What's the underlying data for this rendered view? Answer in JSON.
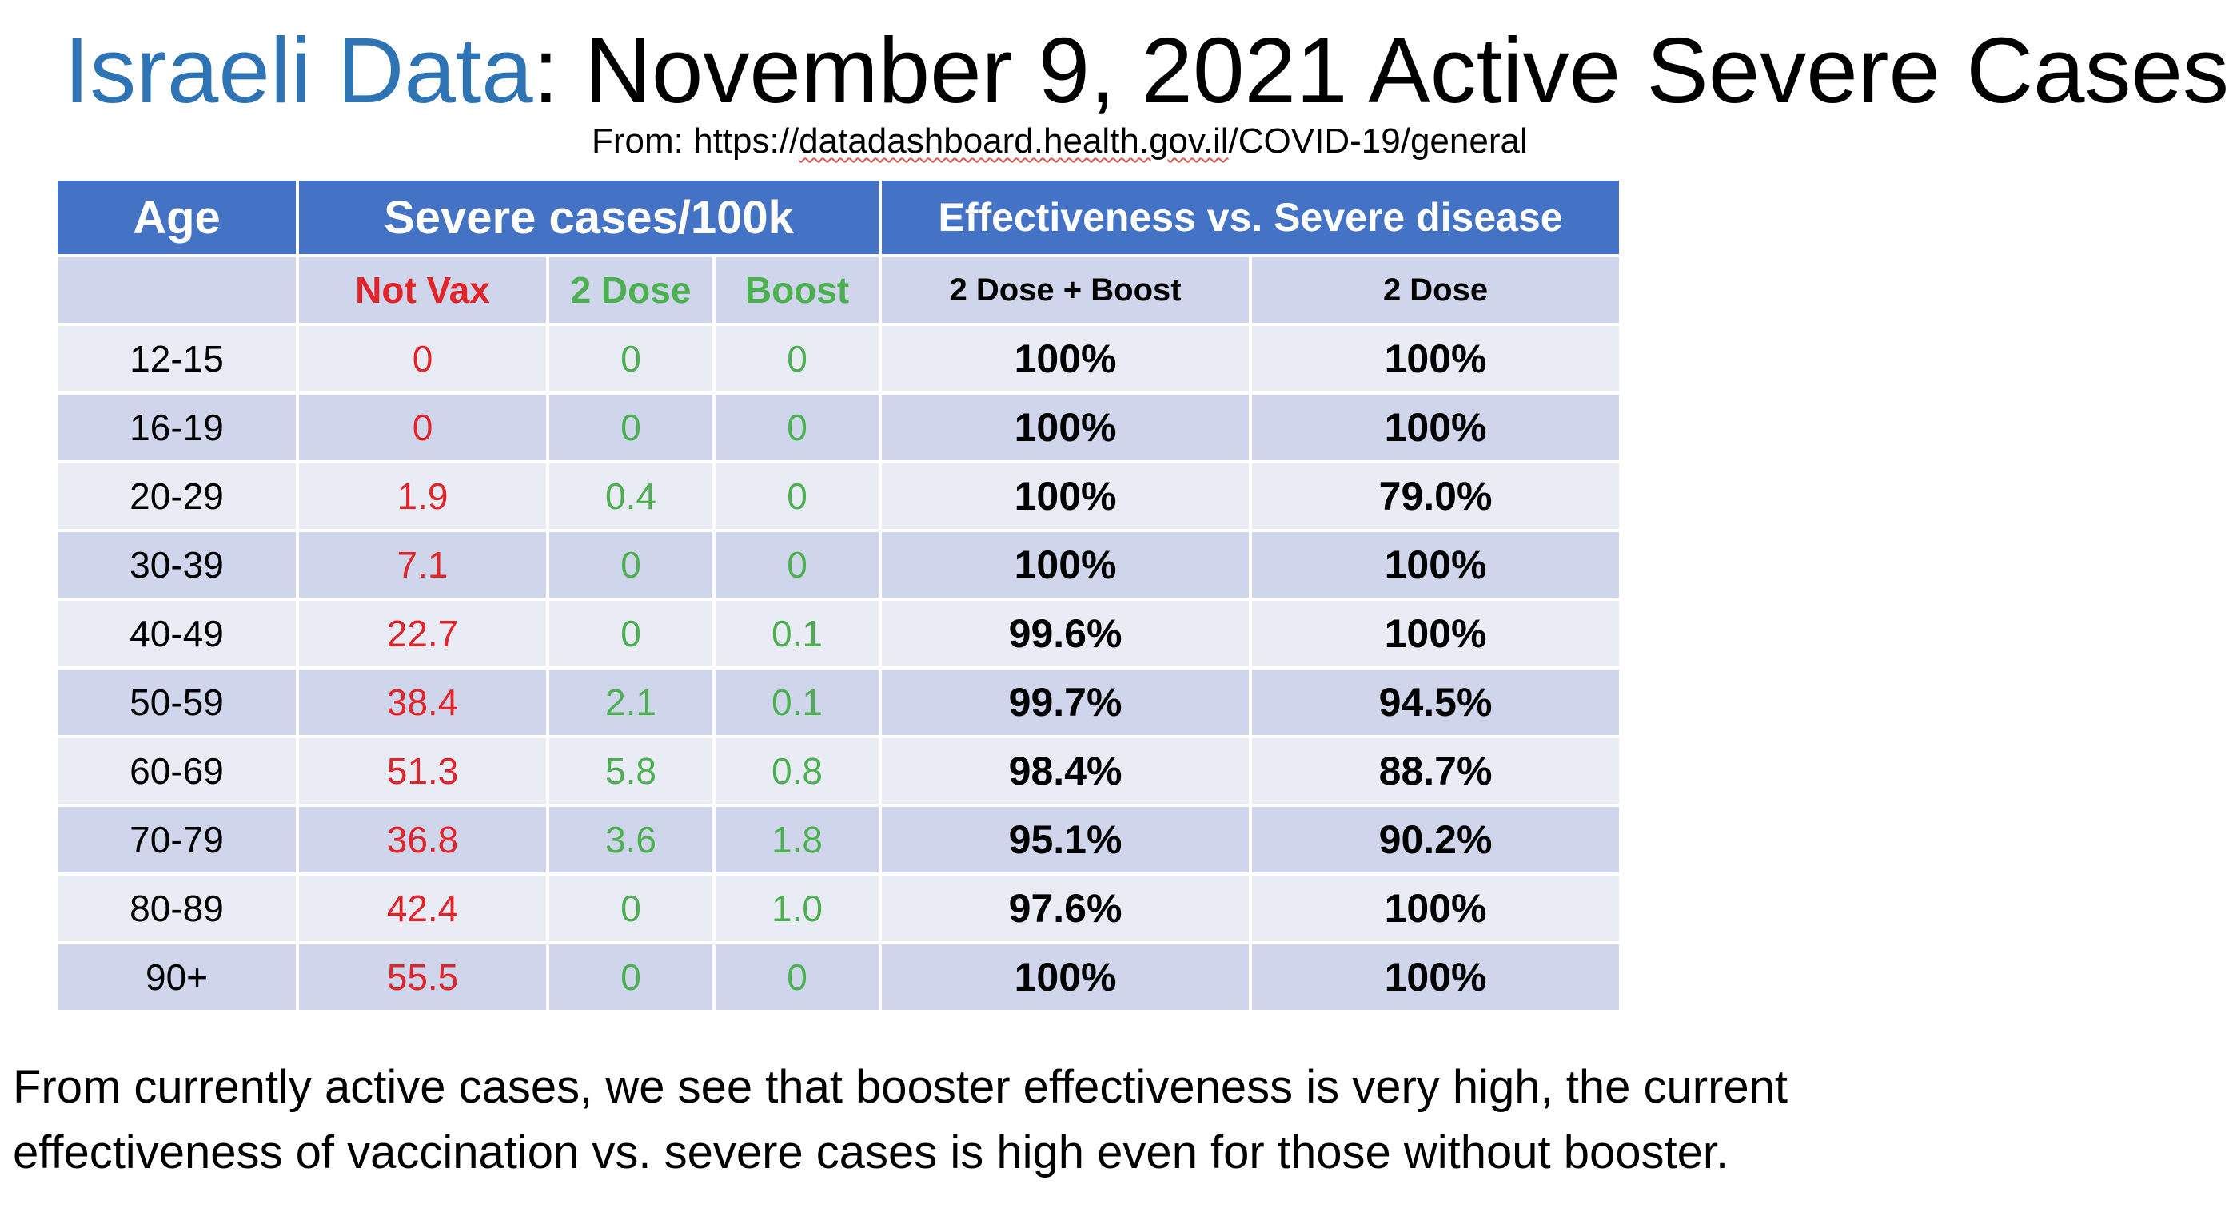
{
  "title": {
    "accent": "Israeli Data",
    "rest": ": November 9, 2021 Active Severe Cases"
  },
  "source": {
    "prefix": "From: https://",
    "underlined": "datadashboard.health.gov.il",
    "suffix": "/COVID-19/general"
  },
  "table": {
    "headers": {
      "age": "Age",
      "severe": "Severe cases/100k",
      "effectiveness": "Effectiveness vs. Severe disease"
    },
    "subheaders": {
      "age": "",
      "not_vax": "Not Vax",
      "two_dose": "2 Dose",
      "boost": "Boost",
      "eff_boost": "2 Dose + Boost",
      "eff_two_dose": "2 Dose"
    },
    "rows": [
      {
        "age": "12-15",
        "not_vax": "0",
        "two_dose": "0",
        "boost": "0",
        "eff_boost": "100%",
        "eff_two_dose": "100%"
      },
      {
        "age": "16-19",
        "not_vax": "0",
        "two_dose": "0",
        "boost": "0",
        "eff_boost": "100%",
        "eff_two_dose": "100%"
      },
      {
        "age": "20-29",
        "not_vax": "1.9",
        "two_dose": "0.4",
        "boost": "0",
        "eff_boost": "100%",
        "eff_two_dose": "79.0%"
      },
      {
        "age": "30-39",
        "not_vax": "7.1",
        "two_dose": "0",
        "boost": "0",
        "eff_boost": "100%",
        "eff_two_dose": "100%"
      },
      {
        "age": "40-49",
        "not_vax": "22.7",
        "two_dose": "0",
        "boost": "0.1",
        "eff_boost": "99.6%",
        "eff_two_dose": "100%"
      },
      {
        "age": "50-59",
        "not_vax": "38.4",
        "two_dose": "2.1",
        "boost": "0.1",
        "eff_boost": "99.7%",
        "eff_two_dose": "94.5%"
      },
      {
        "age": "60-69",
        "not_vax": "51.3",
        "two_dose": "5.8",
        "boost": "0.8",
        "eff_boost": "98.4%",
        "eff_two_dose": "88.7%"
      },
      {
        "age": "70-79",
        "not_vax": "36.8",
        "two_dose": "3.6",
        "boost": "1.8",
        "eff_boost": "95.1%",
        "eff_two_dose": "90.2%"
      },
      {
        "age": "80-89",
        "not_vax": "42.4",
        "two_dose": "0",
        "boost": "1.0",
        "eff_boost": "97.6%",
        "eff_two_dose": "100%"
      },
      {
        "age": "90+",
        "not_vax": "55.5",
        "two_dose": "0",
        "boost": "0",
        "eff_boost": "100%",
        "eff_two_dose": "100%"
      }
    ]
  },
  "note": "From currently active cases, we see that booster effectiveness is very high, the current effectiveness of vaccination vs. severe cases is high even for those without booster.",
  "colors": {
    "title_accent": "#2e74b5",
    "header_bg": "#4472c4",
    "row_light": "#e9ebf5",
    "row_dark": "#cfd5ea",
    "not_vax": "#e0242a",
    "vax": "#4caf50"
  }
}
